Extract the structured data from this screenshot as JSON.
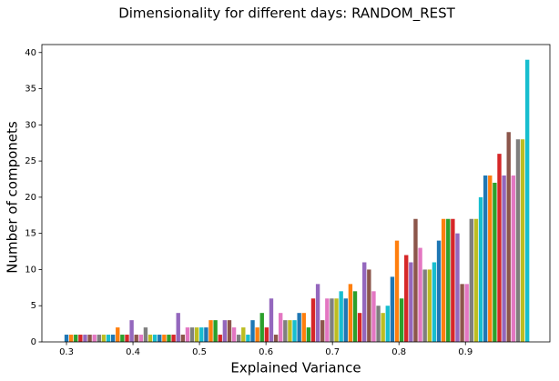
{
  "chart_data": {
    "type": "bar",
    "title": "Dimensionality for different days: RANDOM_REST",
    "x_label": "Explained Variance",
    "y_label": "Number of componets",
    "xlim": [
      0.263,
      1.027
    ],
    "ylim": [
      0,
      41.1
    ],
    "xticks": [
      0.3,
      0.4,
      0.5,
      0.6,
      0.7,
      0.8,
      0.9
    ],
    "yticks": [
      0,
      5,
      10,
      15,
      20,
      25,
      30,
      35,
      40
    ],
    "series": [
      {
        "color": "#1f77b4",
        "x": [
          0.3,
          0.37,
          0.44,
          0.51,
          0.58,
          0.65,
          0.72,
          0.79,
          0.86,
          0.93
        ],
        "values": [
          1,
          1,
          1,
          2,
          3,
          4,
          6,
          9,
          14,
          23
        ]
      },
      {
        "color": "#ff7f0e",
        "x": [
          0.307,
          0.377,
          0.447,
          0.517,
          0.587,
          0.657,
          0.727,
          0.797,
          0.867,
          0.937
        ],
        "values": [
          1,
          2,
          1,
          3,
          2,
          4,
          8,
          14,
          17,
          23
        ]
      },
      {
        "color": "#2ca02c",
        "x": [
          0.314,
          0.384,
          0.454,
          0.524,
          0.594,
          0.664,
          0.734,
          0.804,
          0.874,
          0.944
        ],
        "values": [
          1,
          1,
          1,
          3,
          4,
          2,
          7,
          6,
          17,
          22
        ]
      },
      {
        "color": "#d62728",
        "x": [
          0.321,
          0.391,
          0.461,
          0.531,
          0.601,
          0.671,
          0.741,
          0.811,
          0.881,
          0.951
        ],
        "values": [
          1,
          1,
          1,
          1,
          2,
          6,
          4,
          12,
          17,
          26
        ]
      },
      {
        "color": "#9467bd",
        "x": [
          0.328,
          0.398,
          0.468,
          0.538,
          0.608,
          0.678,
          0.748,
          0.818,
          0.888,
          0.958
        ],
        "values": [
          1,
          3,
          4,
          3,
          6,
          8,
          11,
          11,
          15,
          23
        ]
      },
      {
        "color": "#8c564b",
        "x": [
          0.335,
          0.405,
          0.475,
          0.545,
          0.615,
          0.685,
          0.755,
          0.825,
          0.895,
          0.965
        ],
        "values": [
          1,
          1,
          1,
          3,
          1,
          3,
          10,
          17,
          8,
          29
        ]
      },
      {
        "color": "#e377c2",
        "x": [
          0.342,
          0.412,
          0.482,
          0.552,
          0.622,
          0.692,
          0.762,
          0.832,
          0.902,
          0.972
        ],
        "values": [
          1,
          1,
          2,
          2,
          4,
          6,
          7,
          13,
          8,
          23
        ]
      },
      {
        "color": "#7f7f7f",
        "x": [
          0.349,
          0.419,
          0.489,
          0.559,
          0.629,
          0.699,
          0.769,
          0.839,
          0.909,
          0.979
        ],
        "values": [
          1,
          2,
          2,
          1,
          3,
          6,
          5,
          10,
          17,
          28
        ]
      },
      {
        "color": "#bcbd22",
        "x": [
          0.356,
          0.426,
          0.496,
          0.566,
          0.636,
          0.706,
          0.776,
          0.846,
          0.916,
          0.986
        ],
        "values": [
          1,
          1,
          2,
          2,
          3,
          6,
          4,
          10,
          17,
          28
        ]
      },
      {
        "color": "#17becf",
        "x": [
          0.363,
          0.433,
          0.503,
          0.573,
          0.643,
          0.713,
          0.783,
          0.853,
          0.923,
          0.993
        ],
        "values": [
          1,
          1,
          2,
          1,
          3,
          7,
          5,
          11,
          20,
          39
        ]
      }
    ]
  }
}
